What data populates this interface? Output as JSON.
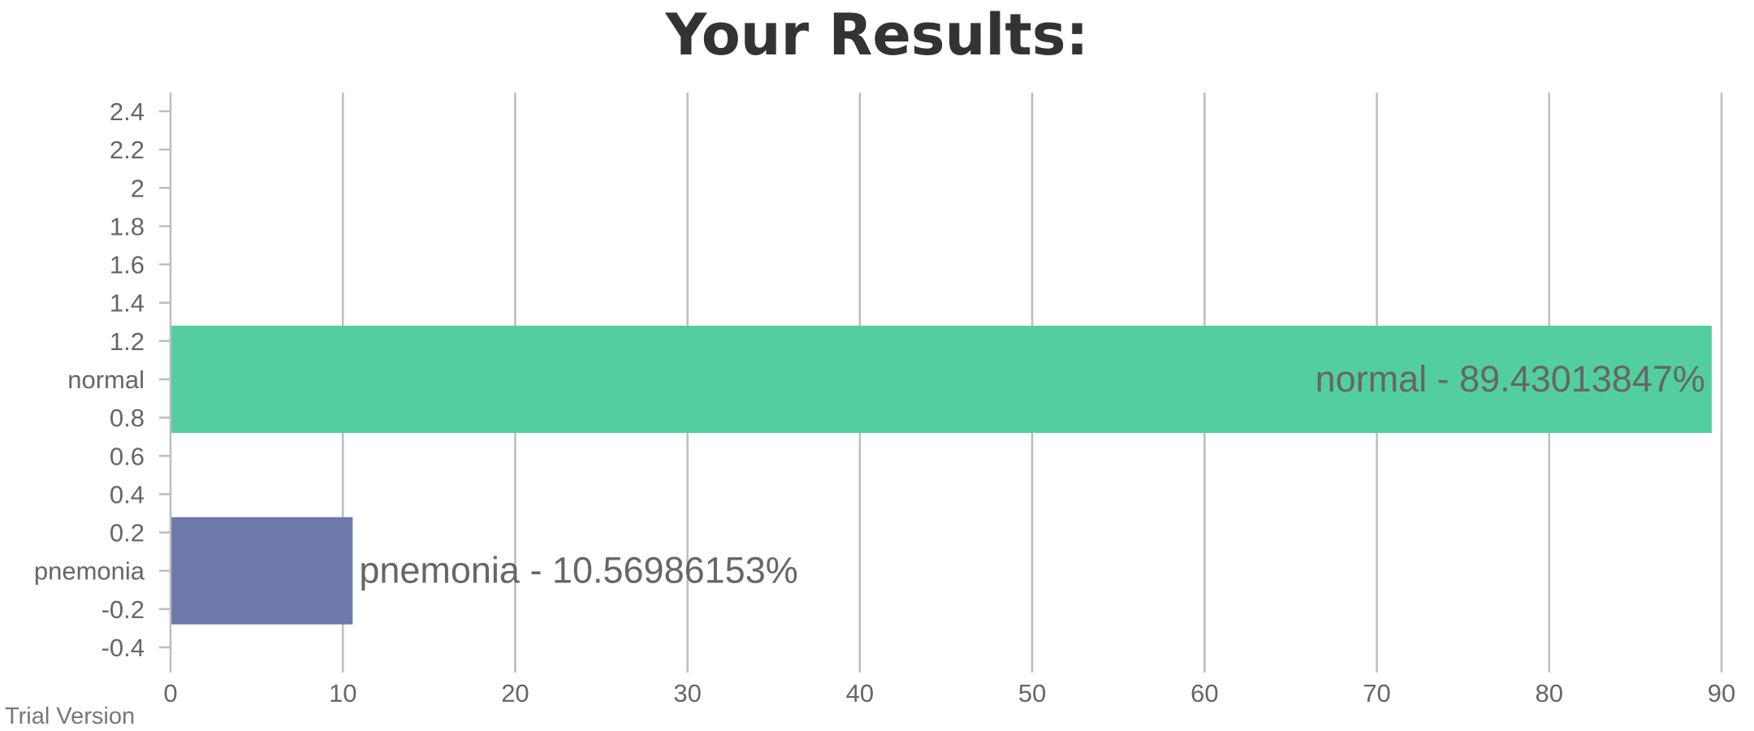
{
  "chart_data": {
    "type": "bar",
    "orientation": "horizontal",
    "title": "Your Results:",
    "categories": [
      "pnemonia",
      "normal"
    ],
    "values": [
      10.56986153,
      89.43013847
    ],
    "data_labels": [
      "pnemonia - 10.56986153%",
      "normal - 89.43013847%"
    ],
    "bar_colors": [
      "#6d79ab",
      "#52ce9f"
    ],
    "y_positions": [
      0,
      1
    ],
    "bar_half_height": 0.28,
    "x_ticks": [
      "0",
      "10",
      "20",
      "30",
      "40",
      "50",
      "60",
      "70",
      "80",
      "90"
    ],
    "x_tick_values": [
      0,
      10,
      20,
      30,
      40,
      50,
      60,
      70,
      80,
      90
    ],
    "xlim": [
      0,
      90
    ],
    "y_ticks": [
      "-0.4",
      "-0.2",
      "pnemonia",
      "0.2",
      "0.4",
      "0.6",
      "0.8",
      "normal",
      "1.2",
      "1.4",
      "1.6",
      "1.8",
      "2",
      "2.2",
      "2.4"
    ],
    "y_tick_values": [
      -0.4,
      -0.2,
      0,
      0.2,
      0.4,
      0.6,
      0.8,
      1.0,
      1.2,
      1.4,
      1.6,
      1.8,
      2.0,
      2.2,
      2.4
    ],
    "ylim": [
      -0.4,
      2.4
    ],
    "grid": "vertical",
    "grid_color": "#bdbdbd",
    "xlabel": "",
    "ylabel": ""
  },
  "watermark": "Trial Version"
}
